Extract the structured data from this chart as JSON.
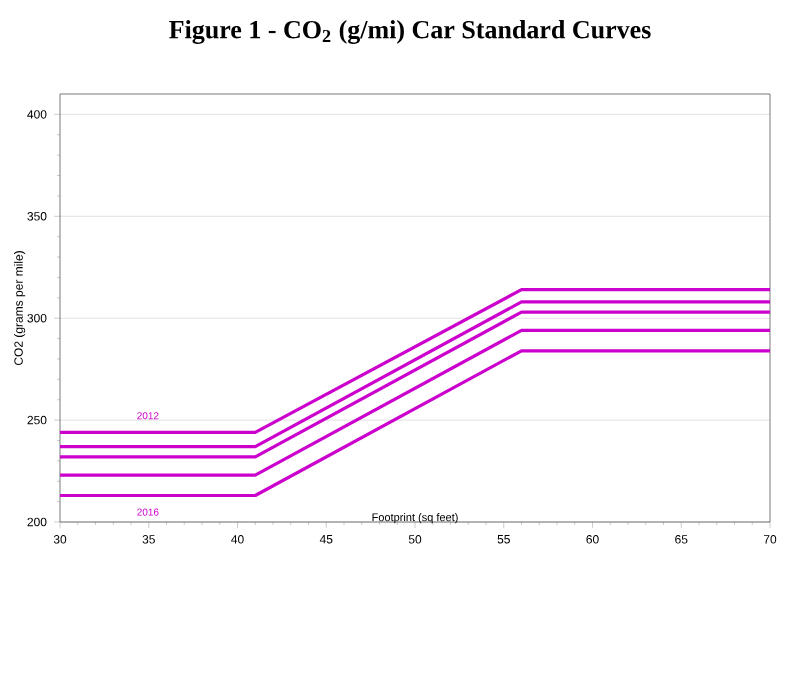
{
  "chart_data": {
    "type": "line",
    "title": "Figure 1 - CO$_{2}$ (g/mi) Car Standard Curves",
    "xlabel": "Footprint (sq feet)",
    "ylabel": "CO2 (grams per mile)",
    "x": [
      30,
      41,
      56,
      70
    ],
    "series": [
      {
        "color": "#cc00cc",
        "values": [
          244,
          244,
          314,
          314
        ]
      },
      {
        "color": "#cc00cc",
        "values": [
          237,
          237,
          308,
          308
        ]
      },
      {
        "color": "#cc00cc",
        "values": [
          232,
          232,
          303,
          303
        ]
      },
      {
        "color": "#cc00cc",
        "values": [
          223,
          223,
          294,
          294
        ]
      },
      {
        "color": "#cc00cc",
        "values": [
          213,
          213,
          284,
          284
        ]
      }
    ],
    "annotations": [
      "2012",
      "2016"
    ],
    "xlim": [
      30,
      70
    ],
    "xticks": [
      30,
      35,
      40,
      45,
      50,
      55,
      60,
      65,
      70
    ],
    "ylim": [
      200,
      410
    ],
    "yticks": [
      200,
      250,
      300,
      350,
      400
    ],
    "grid": "y",
    "marker": "none",
    "line_style": "solid"
  }
}
